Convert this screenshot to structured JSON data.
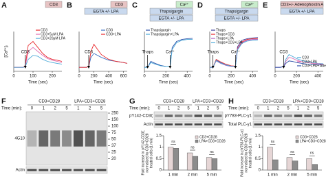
{
  "chart_data": [
    {
      "type": "line",
      "panel": "A",
      "boxes": [
        {
          "text": "CD3",
          "color": "#e7c3c3"
        }
      ],
      "ylabel": "[Ca²⁺]ᵢ",
      "xlabel": "Time (sec)",
      "legend": "upper right",
      "x": [
        0,
        25,
        50,
        60,
        75,
        100,
        125,
        150,
        175,
        200,
        225,
        250
      ],
      "xlim": [
        0,
        250
      ],
      "xticks": [
        0,
        100,
        200
      ],
      "ylim": [
        0,
        1
      ],
      "series": [
        {
          "name": "CD3",
          "color": "#e8262a",
          "values": [
            0.1,
            0.1,
            0.1,
            0.15,
            0.65,
            0.75,
            0.6,
            0.45,
            0.35,
            0.3,
            0.28,
            0.25
          ]
        },
        {
          "name": "CD3+5μM LPA",
          "color": "#e06ab0",
          "values": [
            0.1,
            0.1,
            0.1,
            0.12,
            0.5,
            0.6,
            0.5,
            0.4,
            0.32,
            0.28,
            0.25,
            0.22
          ]
        },
        {
          "name": "CD3+20μM LPA",
          "color": "#4aa8d8",
          "values": [
            0.1,
            0.1,
            0.1,
            0.12,
            0.3,
            0.4,
            0.38,
            0.3,
            0.25,
            0.22,
            0.2,
            0.18
          ]
        }
      ],
      "annotations": [
        {
          "text": "CD3",
          "x": 60
        }
      ]
    },
    {
      "type": "line",
      "panel": "B",
      "boxes": [
        {
          "text": "CD3",
          "color": "#e7c3c3"
        },
        {
          "text": "EGTA +/- LPA",
          "color": "#c9d9ee"
        }
      ],
      "xlabel": "Time (sec)",
      "legend": "upper right",
      "x": [
        0,
        50,
        100,
        130,
        160,
        200,
        250,
        300,
        400,
        500,
        600,
        650
      ],
      "xlim": [
        0,
        650
      ],
      "xticks": [
        0,
        200,
        400,
        600
      ],
      "ylim": [
        0,
        1
      ],
      "series": [
        {
          "name": "CD3",
          "color": "#3b6fc4",
          "values": [
            0.1,
            0.1,
            0.1,
            0.12,
            0.35,
            0.45,
            0.4,
            0.35,
            0.28,
            0.25,
            0.22,
            0.2
          ]
        },
        {
          "name": "CD3+LPA",
          "color": "#e8262a",
          "values": [
            0.1,
            0.1,
            0.1,
            0.12,
            0.5,
            0.68,
            0.55,
            0.42,
            0.3,
            0.25,
            0.22,
            0.2
          ]
        }
      ],
      "annotations": [
        {
          "text": "CD3",
          "x": 130
        }
      ]
    },
    {
      "type": "line",
      "panel": "C",
      "boxes": [
        {
          "text": "Ca²⁺",
          "color": "#c8eccb"
        },
        {
          "text": "Thapsigargin",
          "color": "#c9d9ee"
        },
        {
          "text": "EGTA +/- LPA",
          "color": "#c9d9ee"
        }
      ],
      "xlabel": "Time (sec)",
      "legend": "upper left",
      "x": [
        0,
        30,
        60,
        100,
        150,
        200,
        240,
        260,
        300,
        350,
        400,
        450
      ],
      "xlim": [
        0,
        450
      ],
      "xticks": [
        0,
        200,
        400
      ],
      "ylim": [
        0,
        1
      ],
      "series": [
        {
          "name": "Thapsigargin",
          "color": "#2a4fa8",
          "values": [
            0.1,
            0.1,
            0.25,
            0.2,
            0.15,
            0.12,
            0.12,
            0.6,
            0.75,
            0.8,
            0.82,
            0.83
          ]
        },
        {
          "name": "Thapsigargin+LPA",
          "color": "#4aa8d8",
          "values": [
            0.1,
            0.1,
            0.22,
            0.18,
            0.14,
            0.12,
            0.12,
            0.55,
            0.72,
            0.78,
            0.8,
            0.8
          ]
        }
      ],
      "annotations": [
        {
          "text": "Thaps",
          "x": 30
        },
        {
          "text": "Ca²⁺",
          "x": 240
        }
      ]
    },
    {
      "type": "line",
      "panel": "D",
      "boxes": [
        {
          "text": "Ca²⁺",
          "color": "#c8eccb"
        },
        {
          "text": "Thapsigargin",
          "color": "#c9d9ee"
        },
        {
          "text": "EGTA +/- LPA",
          "color": "#c9d9ee"
        }
      ],
      "xlabel": "Time (sec)",
      "legend": "upper left",
      "x": [
        0,
        30,
        60,
        100,
        150,
        200,
        240,
        260,
        300,
        350,
        400,
        450
      ],
      "xlim": [
        0,
        450
      ],
      "xticks": [
        0,
        200,
        400
      ],
      "ylim": [
        0,
        1
      ],
      "series": [
        {
          "name": "Thaps",
          "color": "#3b3b9a",
          "values": [
            0.1,
            0.1,
            0.28,
            0.22,
            0.16,
            0.13,
            0.12,
            0.62,
            0.78,
            0.82,
            0.84,
            0.85
          ]
        },
        {
          "name": "Thaps+CD3",
          "color": "#e8262a",
          "values": [
            0.1,
            0.1,
            0.3,
            0.24,
            0.18,
            0.14,
            0.13,
            0.58,
            0.74,
            0.8,
            0.82,
            0.82
          ]
        },
        {
          "name": "Thaps+LPA",
          "color": "#b05fc4",
          "values": [
            0.1,
            0.1,
            0.26,
            0.2,
            0.15,
            0.12,
            0.12,
            0.56,
            0.72,
            0.78,
            0.8,
            0.8
          ]
        },
        {
          "name": "Thaps+CD3+LPA",
          "color": "#4aa8d8",
          "values": [
            0.1,
            0.1,
            0.27,
            0.21,
            0.16,
            0.13,
            0.12,
            0.54,
            0.7,
            0.76,
            0.78,
            0.79
          ]
        }
      ],
      "annotations": [
        {
          "text": "Thaps",
          "x": 30
        },
        {
          "text": "Ca²⁺",
          "x": 240
        }
      ]
    },
    {
      "type": "line",
      "panel": "E",
      "boxes": [
        {
          "text": "CD3+/- Adenophostin A",
          "color": "#e7c3c3"
        },
        {
          "text": "EGTA +/- LPA",
          "color": "#c9d9ee"
        }
      ],
      "xlabel": "Time (sec)",
      "legend": "lower right",
      "x": [
        0,
        50,
        80,
        100,
        130,
        160,
        200,
        250,
        300,
        350,
        400,
        450
      ],
      "xlim": [
        0,
        450
      ],
      "xticks": [
        0,
        200,
        400
      ],
      "ylim": [
        0,
        1
      ],
      "series": [
        {
          "name": "CD3",
          "color": "#4aa8d8",
          "values": [
            0.1,
            0.1,
            0.12,
            0.3,
            0.42,
            0.38,
            0.32,
            0.27,
            0.24,
            0.22,
            0.2,
            0.19
          ]
        },
        {
          "name": "CD3+LPA",
          "color": "#e06ab0",
          "values": [
            0.1,
            0.1,
            0.12,
            0.25,
            0.35,
            0.33,
            0.28,
            0.24,
            0.22,
            0.2,
            0.19,
            0.18
          ]
        },
        {
          "name": "CD3+LPA+ Adeno A",
          "color": "#2a4fa8",
          "values": [
            0.1,
            0.1,
            0.12,
            0.2,
            0.26,
            0.25,
            0.22,
            0.2,
            0.18,
            0.17,
            0.16,
            0.16
          ]
        }
      ],
      "annotations": [
        {
          "text": "CD3",
          "x": 80
        }
      ]
    },
    {
      "type": "bar",
      "panel": "G",
      "blot_headers": [
        "CD3+CD28",
        "LPA+CD3+CD28"
      ],
      "time_label": "Time (min):",
      "times": [
        0,
        1,
        2,
        5,
        1,
        2,
        5
      ],
      "blot_rows": [
        "pY142-CD3ζ",
        "Actin"
      ],
      "ylabel": [
        "Fold increase in pY142-CD3ζ",
        "normalized to CD3+CD28",
        "treated cells (1 min)"
      ],
      "legend": "upper right",
      "categories": [
        "1 min",
        "2 min",
        "5 min"
      ],
      "ylim": [
        0,
        1.5
      ],
      "yticks": [
        0,
        0.5,
        1,
        1.5
      ],
      "significance": [
        "ns",
        "ns",
        "ns"
      ],
      "series": [
        {
          "name": "CD3+CD28",
          "color": "#e6d6d6",
          "values": [
            1,
            0.75,
            0.55
          ]
        },
        {
          "name": "LPA+CD3+CD28",
          "color": "#8c8c8c",
          "values": [
            0.95,
            0.6,
            0.5
          ]
        }
      ]
    },
    {
      "type": "bar",
      "panel": "H",
      "blot_headers": [
        "CD3+CD28",
        "LPA+CD3+CD28"
      ],
      "time_label": "Time (min):",
      "times": [
        0,
        1,
        2,
        5,
        1,
        2,
        5
      ],
      "blot_rows": [
        "pY783-PLC-γ1",
        "Total PLC-γ1"
      ],
      "ylabel": [
        "Fold increase in pY783-PLC-γ1",
        "normalized to CD3+CD28",
        "treated cells (1 min)"
      ],
      "legend": "upper right",
      "categories": [
        "1 min",
        "2 min",
        "5 min"
      ],
      "ylim": [
        0,
        1.5
      ],
      "yticks": [
        0,
        0.5,
        1,
        1.5
      ],
      "significance": [
        "ns",
        "ns",
        "ns"
      ],
      "series": [
        {
          "name": "CD3+CD28",
          "color": "#e6d6d6",
          "values": [
            1,
            0.55,
            0.5
          ]
        },
        {
          "name": "LPA+CD3+CD28",
          "color": "#8c8c8c",
          "values": [
            0.45,
            0.4,
            0.25
          ]
        }
      ]
    }
  ],
  "blot_F": {
    "panel": "F",
    "headers": [
      "CD3+CD28",
      "LPA+CD3+CD28"
    ],
    "time_label": "Time (min):",
    "times": [
      0,
      1,
      2,
      5,
      1,
      2,
      5
    ],
    "markers": [
      250,
      150,
      100,
      75,
      50,
      37,
      25,
      20
    ],
    "antibody": "4G10",
    "loading": "Actin"
  }
}
